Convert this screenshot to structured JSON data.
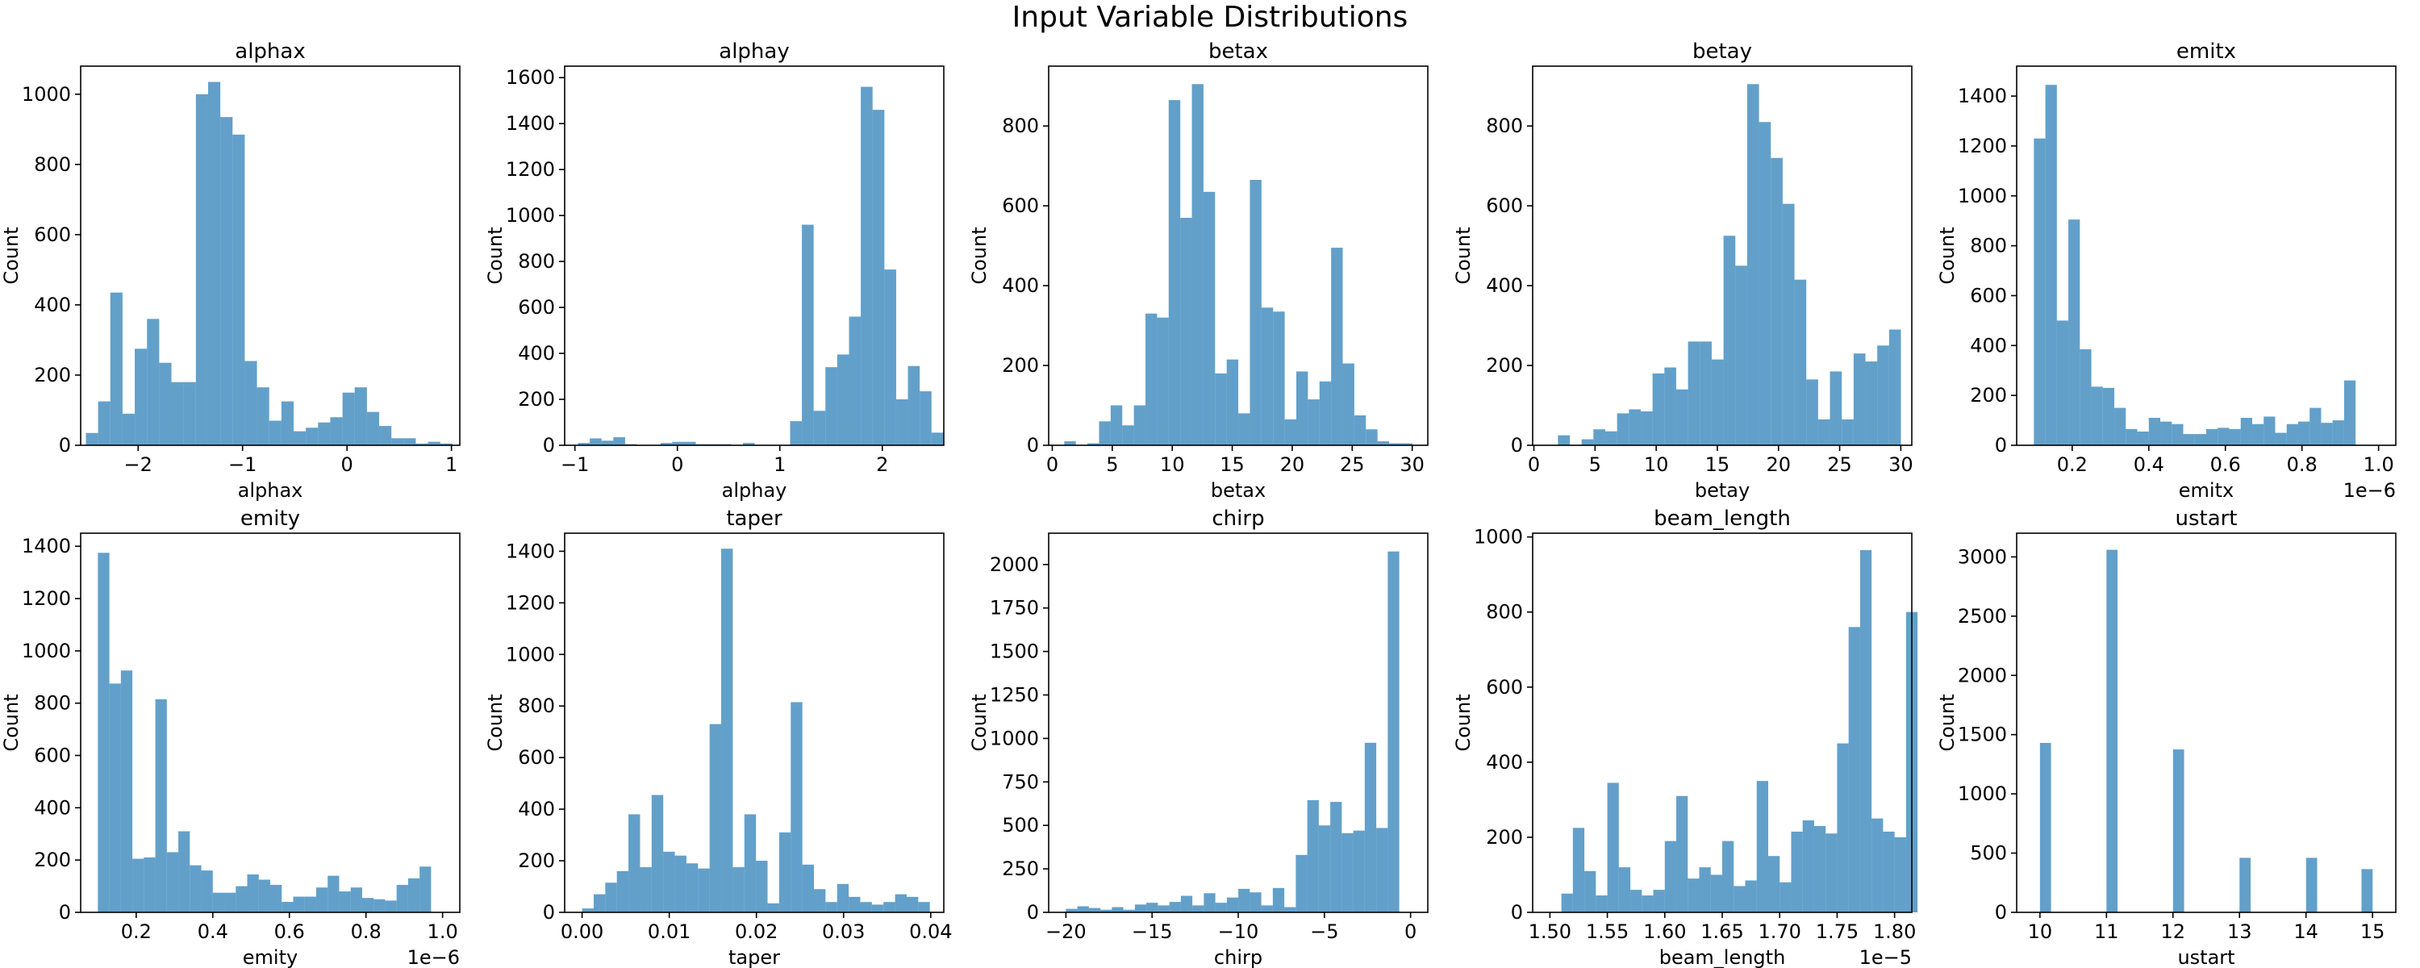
{
  "title": "Input Variable Distributions",
  "bar_color": "#1f77b4",
  "bar_opacity": 0.7,
  "chart_data": [
    {
      "type": "bar",
      "title": "alphax",
      "xlabel": "alphax",
      "ylabel": "Count",
      "xlim": [
        -2.55,
        1.08
      ],
      "ylim": [
        0,
        1080
      ],
      "xticks": [
        -2,
        -1,
        0,
        1
      ],
      "xtick_labels": [
        "−2",
        "−1",
        "0",
        "1"
      ],
      "yticks": [
        0,
        200,
        400,
        600,
        800,
        1000
      ],
      "bin_start": -2.5,
      "bin_width": 0.117,
      "values": [
        35,
        125,
        435,
        90,
        275,
        360,
        235,
        180,
        180,
        1000,
        1035,
        935,
        885,
        240,
        165,
        70,
        125,
        40,
        50,
        65,
        80,
        150,
        165,
        95,
        55,
        20,
        20,
        5,
        10,
        5
      ],
      "offset_text": ""
    },
    {
      "type": "bar",
      "title": "alphay",
      "xlabel": "alphay",
      "ylabel": "Count",
      "xlim": [
        -1.1,
        2.6
      ],
      "ylim": [
        0,
        1650
      ],
      "xticks": [
        -1,
        0,
        1,
        2
      ],
      "xtick_labels": [
        "−1",
        "0",
        "1",
        "2"
      ],
      "yticks": [
        0,
        200,
        400,
        600,
        800,
        1000,
        1200,
        1400,
        1600
      ],
      "bin_start": -0.97,
      "bin_width": 0.115,
      "values": [
        10,
        30,
        20,
        35,
        5,
        0,
        0,
        10,
        15,
        15,
        5,
        5,
        5,
        0,
        10,
        0,
        0,
        0,
        105,
        960,
        150,
        340,
        395,
        560,
        1560,
        1460,
        765,
        200,
        345,
        235,
        55
      ],
      "offset_text": ""
    },
    {
      "type": "bar",
      "title": "betax",
      "xlabel": "betax",
      "ylabel": "Count",
      "xlim": [
        -0.3,
        31.3
      ],
      "ylim": [
        0,
        950
      ],
      "xticks": [
        0,
        5,
        10,
        15,
        20,
        25,
        30
      ],
      "xtick_labels": [
        "0",
        "5",
        "10",
        "15",
        "20",
        "25",
        "30"
      ],
      "yticks": [
        0,
        200,
        400,
        600,
        800
      ],
      "bin_start": 1,
      "bin_width": 0.967,
      "values": [
        10,
        0,
        5,
        60,
        100,
        50,
        100,
        330,
        320,
        865,
        570,
        905,
        635,
        180,
        215,
        80,
        665,
        345,
        335,
        65,
        185,
        115,
        160,
        495,
        205,
        75,
        40,
        10,
        5,
        5
      ],
      "offset_text": ""
    },
    {
      "type": "bar",
      "title": "betay",
      "xlabel": "betay",
      "ylabel": "Count",
      "xlim": [
        -0.1,
        30.9
      ],
      "ylim": [
        0,
        950
      ],
      "xticks": [
        0,
        5,
        10,
        15,
        20,
        25,
        30
      ],
      "xtick_labels": [
        "0",
        "5",
        "10",
        "15",
        "20",
        "25",
        "30"
      ],
      "yticks": [
        0,
        200,
        400,
        600,
        800
      ],
      "bin_start": 1,
      "bin_width": 0.967,
      "values": [
        0,
        25,
        0,
        15,
        40,
        35,
        80,
        90,
        85,
        180,
        195,
        140,
        260,
        260,
        215,
        525,
        450,
        905,
        810,
        720,
        605,
        415,
        165,
        65,
        185,
        65,
        230,
        210,
        250,
        290
      ],
      "offset_text": ""
    },
    {
      "type": "bar",
      "title": "emitx",
      "xlabel": "emitx",
      "ylabel": "Count",
      "xlim": [
        0.055,
        1.045
      ],
      "ylim": [
        0,
        1520
      ],
      "xticks": [
        0.2,
        0.4,
        0.6,
        0.8,
        1.0
      ],
      "xtick_labels": [
        "0.2",
        "0.4",
        "0.6",
        "0.8",
        "1.0"
      ],
      "yticks": [
        0,
        200,
        400,
        600,
        800,
        1000,
        1200,
        1400
      ],
      "bin_start": 0.1,
      "bin_width": 0.03,
      "values": [
        1230,
        1445,
        500,
        905,
        385,
        235,
        230,
        150,
        65,
        55,
        110,
        95,
        85,
        45,
        45,
        65,
        70,
        65,
        110,
        85,
        115,
        50,
        85,
        95,
        150,
        90,
        100,
        260
      ],
      "offset_text": "1e−6"
    },
    {
      "type": "bar",
      "title": "emity",
      "xlabel": "emity",
      "ylabel": "Count",
      "xlim": [
        0.055,
        1.045
      ],
      "ylim": [
        0,
        1450
      ],
      "xticks": [
        0.2,
        0.4,
        0.6,
        0.8,
        1.0
      ],
      "xtick_labels": [
        "0.2",
        "0.4",
        "0.6",
        "0.8",
        "1.0"
      ],
      "yticks": [
        0,
        200,
        400,
        600,
        800,
        1000,
        1200,
        1400
      ],
      "bin_start": 0.1,
      "bin_width": 0.03,
      "values": [
        1375,
        875,
        925,
        205,
        210,
        815,
        230,
        310,
        180,
        160,
        75,
        75,
        100,
        145,
        125,
        105,
        40,
        60,
        60,
        95,
        140,
        80,
        95,
        55,
        50,
        45,
        105,
        130,
        175
      ],
      "offset_text": "1e−6"
    },
    {
      "type": "bar",
      "title": "taper",
      "xlabel": "taper",
      "ylabel": "Count",
      "xlim": [
        -0.002,
        0.0415
      ],
      "ylim": [
        0,
        1470
      ],
      "xticks": [
        0.0,
        0.01,
        0.02,
        0.03,
        0.04
      ],
      "xtick_labels": [
        "0.00",
        "0.01",
        "0.02",
        "0.03",
        "0.04"
      ],
      "yticks": [
        0,
        200,
        400,
        600,
        800,
        1000,
        1200,
        1400
      ],
      "bin_start": 0,
      "bin_width": 0.00133,
      "values": [
        15,
        70,
        115,
        160,
        380,
        175,
        455,
        235,
        220,
        190,
        170,
        730,
        1410,
        175,
        380,
        200,
        35,
        310,
        815,
        185,
        90,
        40,
        110,
        60,
        40,
        30,
        40,
        70,
        60,
        40
      ],
      "offset_text": ""
    },
    {
      "type": "bar",
      "title": "chirp",
      "xlabel": "chirp",
      "ylabel": "Count",
      "xlim": [
        -21.0,
        1.0
      ],
      "ylim": [
        0,
        2180
      ],
      "xticks": [
        -20,
        -15,
        -10,
        -5,
        0
      ],
      "xtick_labels": [
        "−20",
        "−15",
        "−10",
        "−5",
        "0"
      ],
      "yticks": [
        0,
        250,
        500,
        750,
        1000,
        1250,
        1500,
        1750,
        2000
      ],
      "bin_start": -20,
      "bin_width": 0.667,
      "values": [
        20,
        35,
        25,
        15,
        30,
        15,
        45,
        55,
        40,
        60,
        95,
        40,
        110,
        55,
        85,
        135,
        115,
        40,
        140,
        30,
        330,
        645,
        500,
        635,
        455,
        470,
        975,
        485,
        2075,
        0
      ],
      "offset_text": ""
    },
    {
      "type": "bar",
      "title": "beam_length",
      "xlabel": "beam_length",
      "ylabel": "Count",
      "xlim": [
        1.485,
        1.815
      ],
      "ylim": [
        0,
        1010
      ],
      "xticks": [
        1.5,
        1.55,
        1.6,
        1.65,
        1.7,
        1.75,
        1.8
      ],
      "xtick_labels": [
        "1.50",
        "1.55",
        "1.60",
        "1.65",
        "1.70",
        "1.75",
        "1.80"
      ],
      "yticks": [
        0,
        200,
        400,
        600,
        800,
        1000
      ],
      "bin_start": 1.51,
      "bin_width": 0.01,
      "values": [
        50,
        225,
        110,
        45,
        345,
        120,
        60,
        45,
        60,
        190,
        310,
        90,
        120,
        100,
        190,
        70,
        85,
        350,
        150,
        80,
        215,
        245,
        230,
        210,
        450,
        760,
        965,
        250,
        215,
        200,
        800
      ],
      "offset_text": "1e−5"
    },
    {
      "type": "bar",
      "title": "ustart",
      "xlabel": "ustart",
      "ylabel": "Count",
      "xlim": [
        9.65,
        15.35
      ],
      "ylim": [
        0,
        3200
      ],
      "xticks": [
        10,
        11,
        12,
        13,
        14,
        15
      ],
      "xtick_labels": [
        "10",
        "11",
        "12",
        "13",
        "14",
        "15"
      ],
      "yticks": [
        0,
        500,
        1000,
        1500,
        2000,
        2500,
        3000
      ],
      "bin_start": 10,
      "bin_width": 0.1667,
      "values": [
        1430,
        0,
        0,
        0,
        0,
        0,
        3060,
        0,
        0,
        0,
        0,
        0,
        1375,
        0,
        0,
        0,
        0,
        0,
        460,
        0,
        0,
        0,
        0,
        0,
        460,
        0,
        0,
        0,
        0,
        365
      ],
      "offset_text": ""
    }
  ]
}
